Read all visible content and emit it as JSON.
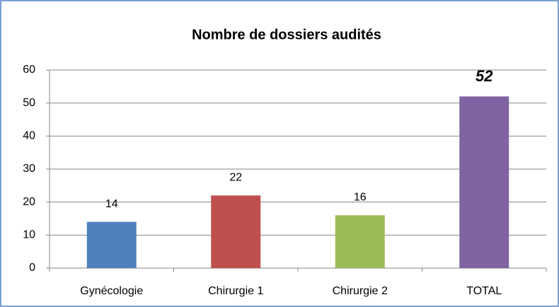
{
  "chart_data": {
    "type": "bar",
    "title": "Nombre de dossiers audités",
    "categories": [
      "Gynécologie",
      "Chirurgie 1",
      "Chirurgie 2",
      "TOTAL"
    ],
    "values": [
      14,
      22,
      16,
      52
    ],
    "colors": [
      "#4f81bd",
      "#c0504d",
      "#9bbb59",
      "#8064a2"
    ],
    "ylim": [
      0,
      60
    ],
    "yticks": [
      0,
      10,
      20,
      30,
      40,
      50,
      60
    ],
    "grid": true
  }
}
